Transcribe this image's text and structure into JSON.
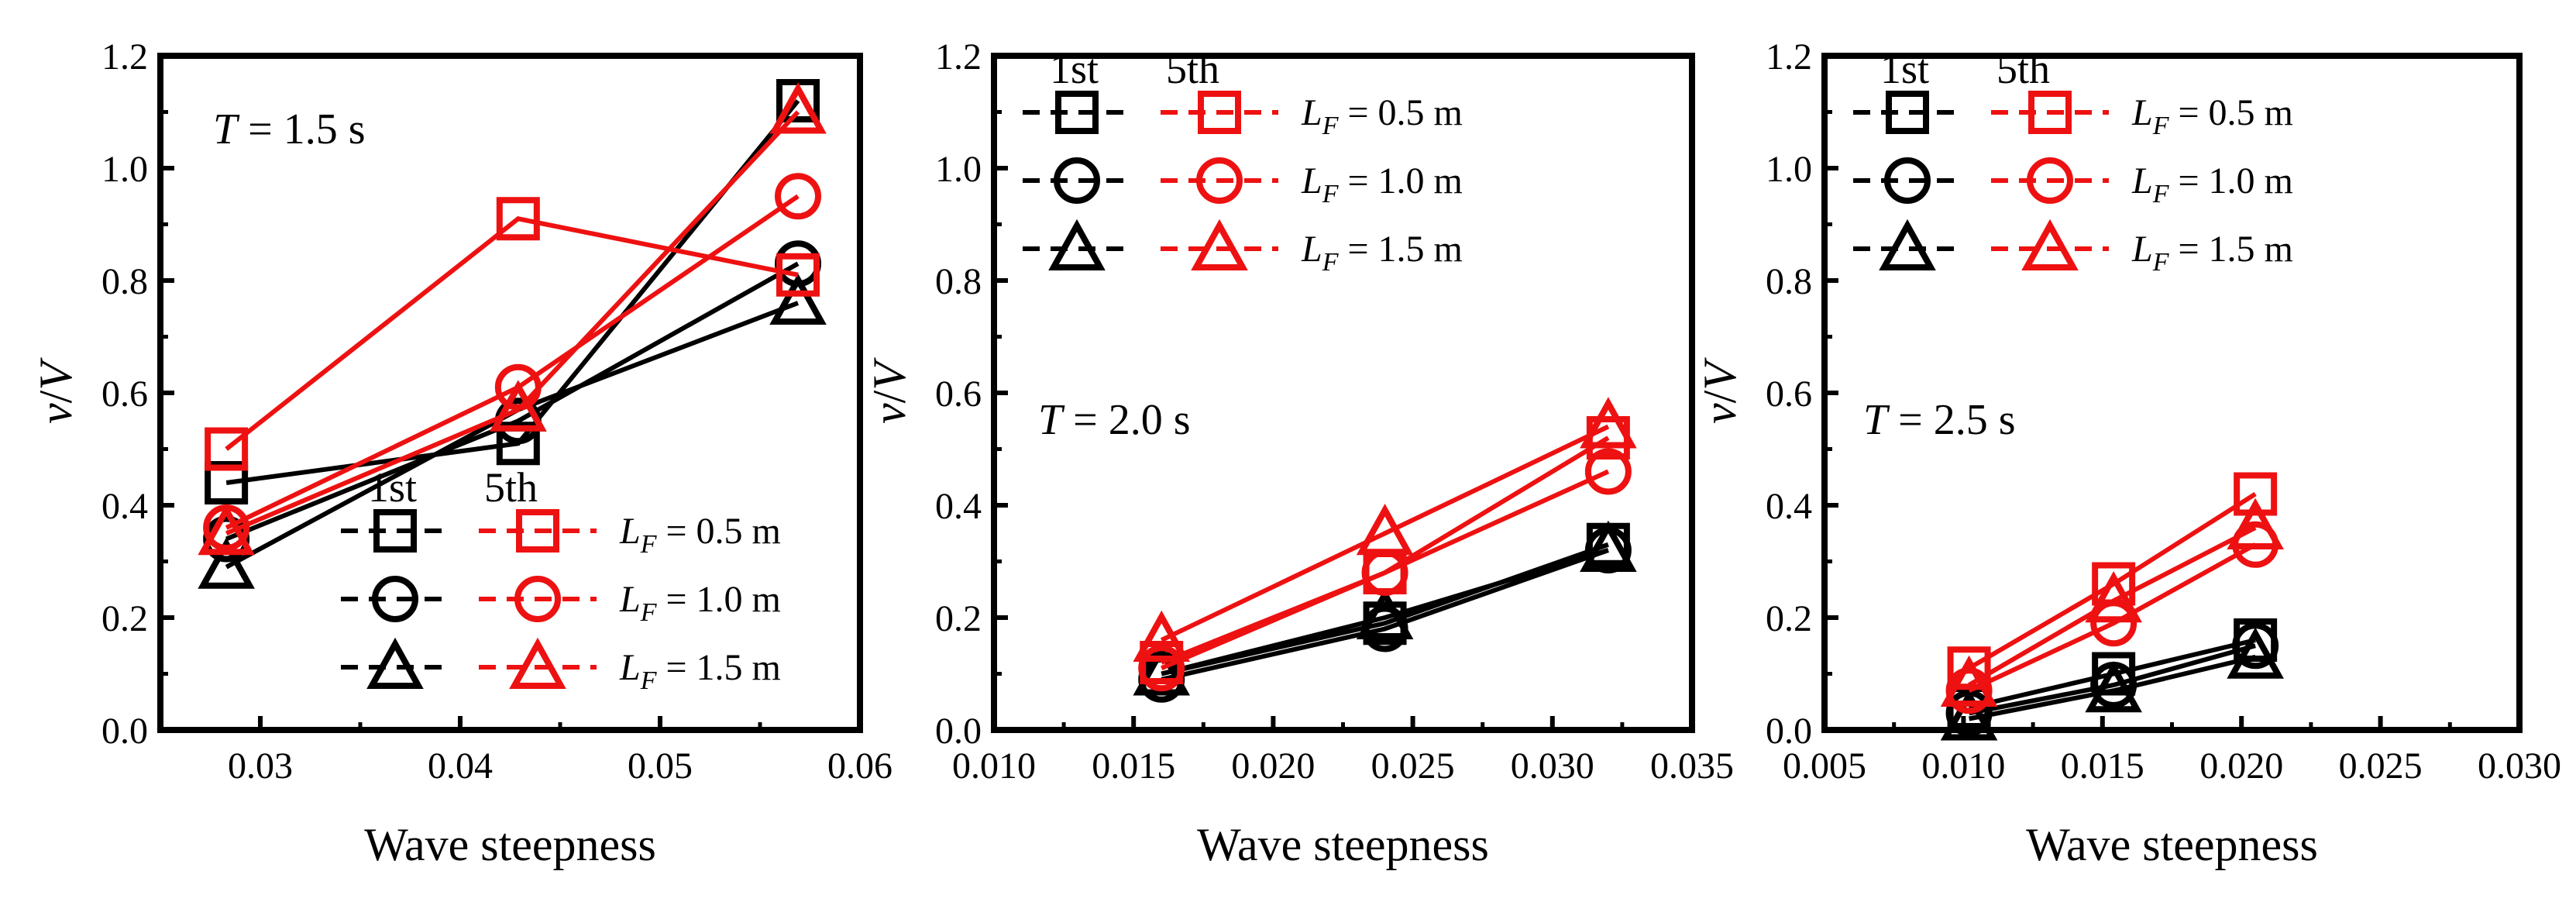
{
  "chart_data": [
    {
      "type": "line",
      "panel": "a",
      "annotation": {
        "italic": "T",
        "rest": " = 1.5 s"
      },
      "xlabel": "Wave steepness",
      "ylabel": {
        "main": "v",
        "sep": "/",
        "den": "V"
      },
      "xlim": [
        0.025,
        0.06
      ],
      "ylim": [
        0,
        1.2
      ],
      "xticks": [
        "0.03",
        "0.04",
        "0.05",
        "0.06"
      ],
      "yticks": [
        "0.0",
        "0.2",
        "0.4",
        "0.6",
        "0.8",
        "1.0",
        "1.2"
      ],
      "legend_position": "bottom-right",
      "series": [
        {
          "name": "1st LF = 0.5 m",
          "color": "#000000",
          "marker": "square",
          "x": [
            0.0283,
            0.0429,
            0.0569
          ],
          "y": [
            0.44,
            0.51,
            1.12
          ]
        },
        {
          "name": "1st LF = 1.0 m",
          "color": "#000000",
          "marker": "circle",
          "x": [
            0.0283,
            0.0429,
            0.0569
          ],
          "y": [
            0.34,
            0.55,
            0.83
          ]
        },
        {
          "name": "1st LF = 1.5 m",
          "color": "#000000",
          "marker": "triangle",
          "x": [
            0.0283,
            0.0429,
            0.0569
          ],
          "y": [
            0.29,
            0.57,
            0.76
          ]
        },
        {
          "name": "5th LF = 0.5 m",
          "color": "#ee1111",
          "marker": "square",
          "x": [
            0.0283,
            0.0429,
            0.0569
          ],
          "y": [
            0.5,
            0.91,
            0.81
          ]
        },
        {
          "name": "5th LF = 1.0 m",
          "color": "#ee1111",
          "marker": "circle",
          "x": [
            0.0283,
            0.0429,
            0.0569
          ],
          "y": [
            0.36,
            0.61,
            0.95
          ]
        },
        {
          "name": "5th LF = 1.5 m",
          "color": "#ee1111",
          "marker": "triangle",
          "x": [
            0.0283,
            0.0429,
            0.0569
          ],
          "y": [
            0.35,
            0.57,
            1.1
          ]
        }
      ]
    },
    {
      "type": "line",
      "panel": "b",
      "annotation": {
        "italic": "T",
        "rest": " = 2.0 s"
      },
      "xlabel": "Wave steepness",
      "ylabel": {
        "main": "v",
        "sep": "/",
        "den": "V"
      },
      "xlim": [
        0.01,
        0.035
      ],
      "ylim": [
        0,
        1.2
      ],
      "xticks": [
        "0.010",
        "0.015",
        "0.020",
        "0.025",
        "0.030",
        "0.035"
      ],
      "yticks": [
        "0.0",
        "0.2",
        "0.4",
        "0.6",
        "0.8",
        "1.0",
        "1.2"
      ],
      "legend_position": "top-left",
      "series": [
        {
          "name": "1st LF = 0.5 m",
          "color": "#000000",
          "marker": "square",
          "x": [
            0.016,
            0.024,
            0.032
          ],
          "y": [
            0.1,
            0.19,
            0.33
          ]
        },
        {
          "name": "1st LF = 1.0 m",
          "color": "#000000",
          "marker": "circle",
          "x": [
            0.016,
            0.024,
            0.032
          ],
          "y": [
            0.09,
            0.18,
            0.32
          ]
        },
        {
          "name": "1st LF = 1.5 m",
          "color": "#000000",
          "marker": "triangle",
          "x": [
            0.016,
            0.024,
            0.032
          ],
          "y": [
            0.1,
            0.2,
            0.32
          ]
        },
        {
          "name": "5th LF = 0.5 m",
          "color": "#ee1111",
          "marker": "square",
          "x": [
            0.016,
            0.024,
            0.032
          ],
          "y": [
            0.12,
            0.28,
            0.52
          ]
        },
        {
          "name": "5th LF = 1.0 m",
          "color": "#ee1111",
          "marker": "circle",
          "x": [
            0.016,
            0.024,
            0.032
          ],
          "y": [
            0.11,
            0.28,
            0.46
          ]
        },
        {
          "name": "5th LF = 1.5 m",
          "color": "#ee1111",
          "marker": "triangle",
          "x": [
            0.016,
            0.024,
            0.032
          ],
          "y": [
            0.16,
            0.35,
            0.54
          ]
        }
      ]
    },
    {
      "type": "line",
      "panel": "c",
      "annotation": {
        "italic": "T",
        "rest": " = 2.5 s"
      },
      "xlabel": "Wave steepness",
      "ylabel": {
        "main": "v",
        "sep": "/",
        "den": "V"
      },
      "xlim": [
        0.005,
        0.03
      ],
      "ylim": [
        0,
        1.2
      ],
      "xticks": [
        "0.005",
        "0.010",
        "0.015",
        "0.020",
        "0.025",
        "0.030"
      ],
      "yticks": [
        "0.0",
        "0.2",
        "0.4",
        "0.6",
        "0.8",
        "1.0",
        "1.2"
      ],
      "legend_position": "top-left",
      "series": [
        {
          "name": "1st LF = 0.5 m",
          "color": "#000000",
          "marker": "square",
          "x": [
            0.0102,
            0.0154,
            0.0205
          ],
          "y": [
            0.04,
            0.1,
            0.16
          ]
        },
        {
          "name": "1st LF = 1.0 m",
          "color": "#000000",
          "marker": "circle",
          "x": [
            0.0102,
            0.0154,
            0.0205
          ],
          "y": [
            0.03,
            0.08,
            0.15
          ]
        },
        {
          "name": "1st LF = 1.5 m",
          "color": "#000000",
          "marker": "triangle",
          "x": [
            0.0102,
            0.0154,
            0.0205
          ],
          "y": [
            0.02,
            0.07,
            0.13
          ]
        },
        {
          "name": "5th LF = 0.5 m",
          "color": "#ee1111",
          "marker": "square",
          "x": [
            0.0102,
            0.0154,
            0.0205
          ],
          "y": [
            0.11,
            0.26,
            0.42
          ]
        },
        {
          "name": "5th LF = 1.0 m",
          "color": "#ee1111",
          "marker": "circle",
          "x": [
            0.0102,
            0.0154,
            0.0205
          ],
          "y": [
            0.07,
            0.19,
            0.33
          ]
        },
        {
          "name": "5th LF = 1.5 m",
          "color": "#ee1111",
          "marker": "triangle",
          "x": [
            0.0102,
            0.0154,
            0.0205
          ],
          "y": [
            0.08,
            0.23,
            0.36
          ]
        }
      ]
    }
  ],
  "legend": {
    "header_1st": "1st",
    "header_5th": "5th",
    "entries": [
      {
        "symbol": "L",
        "subscript": "F",
        "rest": " = 0.5 m",
        "marker": "square"
      },
      {
        "symbol": "L",
        "subscript": "F",
        "rest": " = 1.0 m",
        "marker": "circle"
      },
      {
        "symbol": "L",
        "subscript": "F",
        "rest": " = 1.5 m",
        "marker": "triangle"
      }
    ]
  }
}
